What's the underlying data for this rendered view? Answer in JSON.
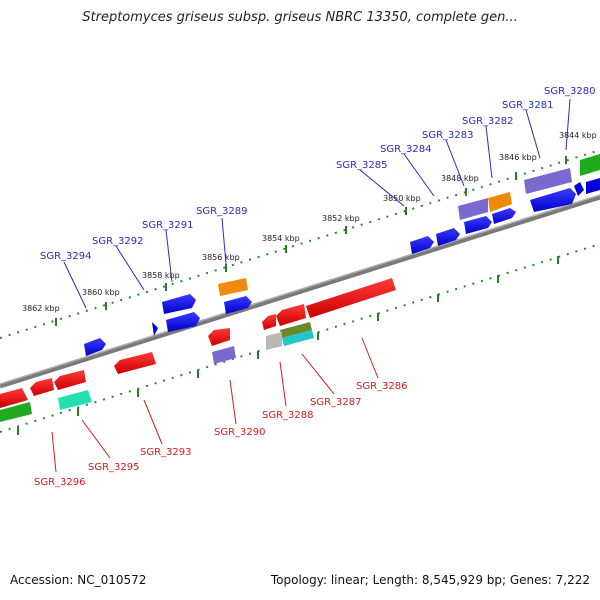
{
  "title": "Streptomyces griseus subsp. griseus NBRC 13350, complete gen...",
  "footer": {
    "accession": "Accession: NC_010572",
    "summary": "Topology: linear; Length: 8,545,929 bp; Genes: 7,222"
  },
  "colors": {
    "forward_label": "#2a2ac8",
    "reverse_label": "#d81a1a",
    "backbone": "#888888",
    "tick": "#2a8a2a"
  },
  "ruler": [
    {
      "label": "3844 kbp"
    },
    {
      "label": "3846 kbp"
    },
    {
      "label": "3848 kbp"
    },
    {
      "label": "3850 kbp"
    },
    {
      "label": "3852 kbp"
    },
    {
      "label": "3854 kbp"
    },
    {
      "label": "3856 kbp"
    },
    {
      "label": "3858 kbp"
    },
    {
      "label": "3860 kbp"
    },
    {
      "label": "3862 kbp"
    }
  ],
  "forward_genes": [
    "SGR_3280",
    "SGR_3281",
    "SGR_3282",
    "SGR_3283",
    "SGR_3284",
    "SGR_3285",
    "SGR_3289",
    "SGR_3291",
    "SGR_3292",
    "SGR_3294"
  ],
  "reverse_genes": [
    "SGR_3286",
    "SGR_3287",
    "SGR_3288",
    "SGR_3290",
    "SGR_3293",
    "SGR_3295",
    "SGR_3296"
  ]
}
